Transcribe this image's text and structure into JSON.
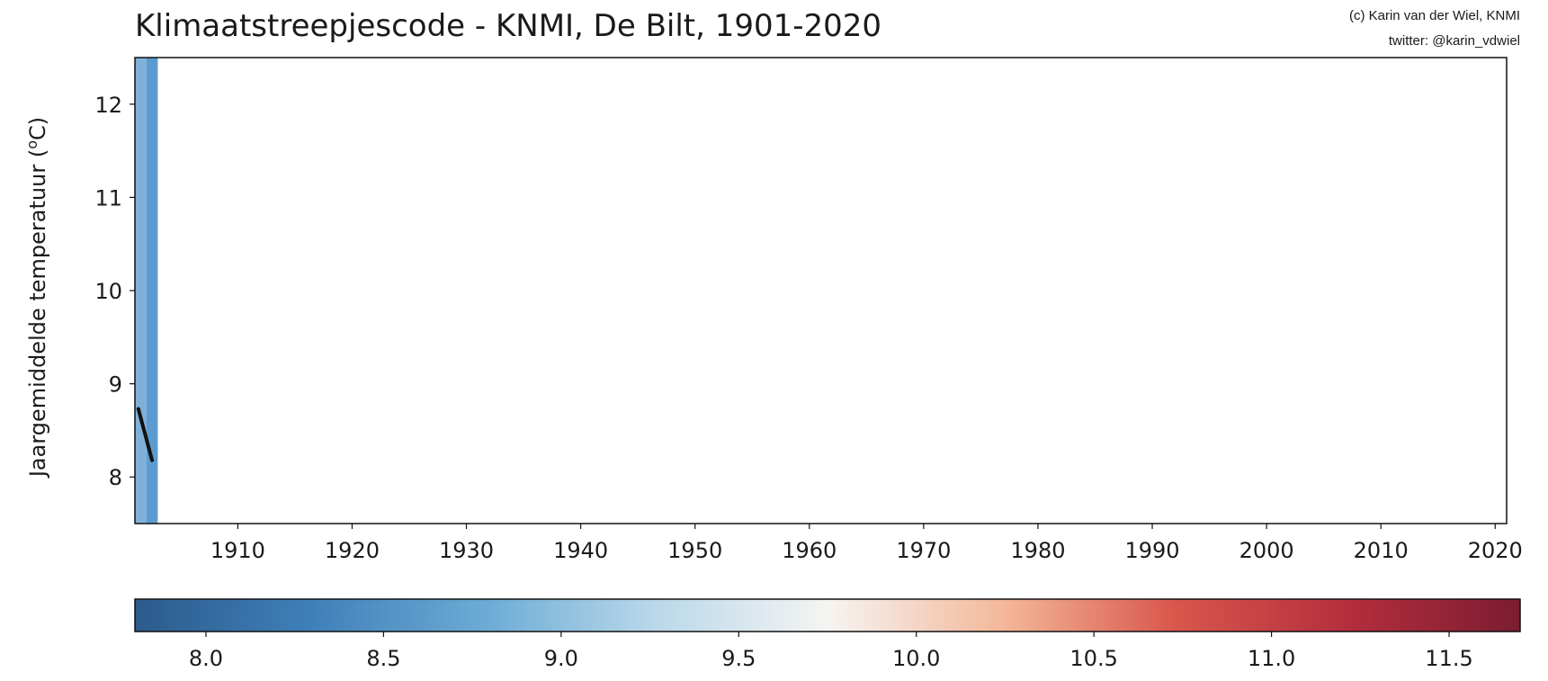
{
  "chart_data": {
    "type": "bar",
    "title": "Klimaatstreepjescode - KNMI, De Bilt, 1901-2020",
    "credit_lines": [
      "(c) Karin van der Wiel, KNMI",
      "twitter: @karin_vdwiel"
    ],
    "ylabel": "Jaargemiddelde temperatuur",
    "ylabel_unit_prefix": "(",
    "ylabel_unit_sup": "o",
    "ylabel_unit_suffix": "C)",
    "xlim": [
      1901,
      2021
    ],
    "ylim": [
      7.5,
      12.5
    ],
    "xticks": [
      1910,
      1920,
      1930,
      1940,
      1950,
      1960,
      1970,
      1980,
      1990,
      2000,
      2010,
      2020
    ],
    "yticks": [
      8,
      9,
      10,
      11,
      12
    ],
    "stripes": [
      {
        "year": 1901,
        "value": 8.7,
        "color": "#7fb0d8"
      },
      {
        "year": 1902,
        "value": 8.6,
        "color": "#5b9bd0"
      }
    ],
    "trend_line": {
      "x": [
        1901.3,
        1902.5
      ],
      "y": [
        8.73,
        8.18
      ]
    },
    "colorbar": {
      "min": 7.8,
      "max": 11.7,
      "ticks": [
        "8.0",
        "8.5",
        "9.0",
        "9.5",
        "10.0",
        "10.5",
        "11.0",
        "11.5"
      ],
      "tick_values": [
        8.0,
        8.5,
        9.0,
        9.5,
        10.0,
        10.5,
        11.0,
        11.5
      ],
      "colors": [
        "#2c5b8c",
        "#3f7fb8",
        "#6aaad4",
        "#b9d8ea",
        "#f5f4f2",
        "#f4b99a",
        "#d9574c",
        "#b52e3d",
        "#7a1d30"
      ]
    },
    "grid": false,
    "legend": "none"
  }
}
